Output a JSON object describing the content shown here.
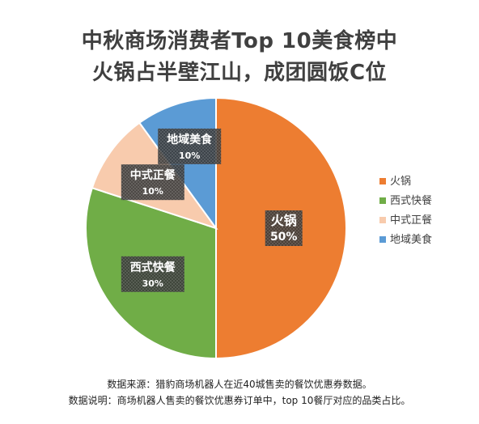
{
  "chart_data": {
    "type": "pie",
    "title_lines": [
      "中秋商场消费者Top 10美食榜中",
      "火锅占半壁江山，成团圆饭C位"
    ],
    "categories": [
      "火锅",
      "西式快餐",
      "中式正餐",
      "地域美食"
    ],
    "values": [
      50,
      30,
      10,
      10
    ],
    "value_labels": [
      "50%",
      "30%",
      "10%",
      "10%"
    ],
    "colors": [
      "#ED7D31",
      "#70AD47",
      "#F8CBAD",
      "#5B9BD5"
    ],
    "legend_position": "right",
    "start_angle": "12 o'clock, clockwise"
  },
  "footer": {
    "source": "数据来源：猎豹商场机器人在近40城售卖的餐饮优惠券数据。",
    "note": "数据说明：商场机器人售卖的餐饮优惠券订单中，top 10餐厅对应的品类占比。"
  }
}
